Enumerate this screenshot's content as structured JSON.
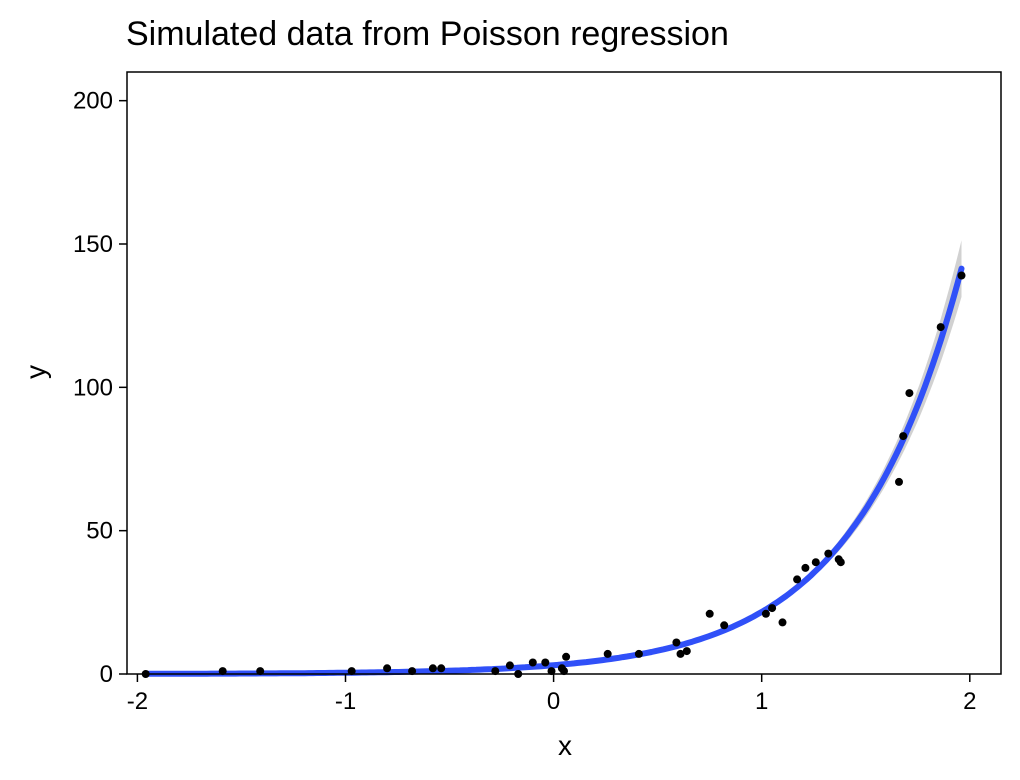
{
  "chart_data": {
    "type": "scatter",
    "title": "Simulated data from Poisson regression",
    "xlabel": "x",
    "ylabel": "y",
    "xlim": [
      -2.05,
      2.15
    ],
    "ylim": [
      0,
      210
    ],
    "xticks": [
      -2,
      -1,
      0,
      1,
      2
    ],
    "yticks": [
      0,
      50,
      100,
      150,
      200
    ],
    "xtick_labels": [
      "-2",
      "-1",
      "0",
      "1",
      "2"
    ],
    "ytick_labels": [
      "0",
      "50",
      "100",
      "150",
      "200"
    ],
    "grid": false,
    "legend": "none",
    "point_color": "#000000",
    "fit_color": "#3050f8",
    "ribbon_color": "#cccccc",
    "points": [
      {
        "x": -1.96,
        "y": 0
      },
      {
        "x": -1.59,
        "y": 1
      },
      {
        "x": -1.41,
        "y": 1
      },
      {
        "x": -0.97,
        "y": 1
      },
      {
        "x": -0.8,
        "y": 2
      },
      {
        "x": -0.68,
        "y": 1
      },
      {
        "x": -0.58,
        "y": 2
      },
      {
        "x": -0.54,
        "y": 2
      },
      {
        "x": -0.28,
        "y": 1
      },
      {
        "x": -0.21,
        "y": 3
      },
      {
        "x": -0.17,
        "y": 0
      },
      {
        "x": -0.1,
        "y": 4
      },
      {
        "x": -0.04,
        "y": 4
      },
      {
        "x": -0.01,
        "y": 1
      },
      {
        "x": 0.04,
        "y": 2
      },
      {
        "x": 0.05,
        "y": 1
      },
      {
        "x": 0.06,
        "y": 6
      },
      {
        "x": 0.26,
        "y": 7
      },
      {
        "x": 0.41,
        "y": 7
      },
      {
        "x": 0.59,
        "y": 11
      },
      {
        "x": 0.61,
        "y": 7
      },
      {
        "x": 0.64,
        "y": 8
      },
      {
        "x": 0.75,
        "y": 21
      },
      {
        "x": 0.82,
        "y": 17
      },
      {
        "x": 1.02,
        "y": 21
      },
      {
        "x": 1.05,
        "y": 23
      },
      {
        "x": 1.1,
        "y": 18
      },
      {
        "x": 1.17,
        "y": 33
      },
      {
        "x": 1.21,
        "y": 37
      },
      {
        "x": 1.26,
        "y": 39
      },
      {
        "x": 1.32,
        "y": 42
      },
      {
        "x": 1.37,
        "y": 40
      },
      {
        "x": 1.38,
        "y": 39
      },
      {
        "x": 1.66,
        "y": 67
      },
      {
        "x": 1.68,
        "y": 83
      },
      {
        "x": 1.71,
        "y": 98
      },
      {
        "x": 1.86,
        "y": 121
      },
      {
        "x": 1.96,
        "y": 139
      }
    ],
    "fit": {
      "model": "exp(a + b*x)",
      "a": 1.12,
      "b": 1.955,
      "x_range": [
        -1.96,
        1.96
      ],
      "ribbon_halfwidth_rel": 0.07
    }
  }
}
